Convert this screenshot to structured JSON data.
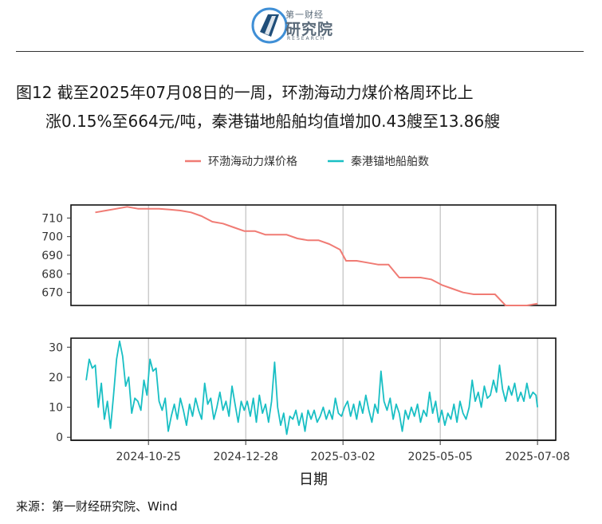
{
  "logo": {
    "cn_small": "第一财经",
    "cn_main": "研究院",
    "en": "RESEARCH",
    "colors": {
      "blue": "#3f8fd6",
      "dark": "#1f4e79",
      "text": "#5b6b7a"
    }
  },
  "title": {
    "line1": "图12  截至2025年07月08日的一周，环渤海动力煤价格周环比上",
    "line2": "涨0.15%至664元/吨，秦港锚地船舶均值增加0.43艘至13.86艘"
  },
  "source": "来源：第一财经研究院、Wind",
  "chart_data": {
    "type": "line",
    "xlabel": "日期",
    "x_ticks": [
      "2024-10-25",
      "2024-12-28",
      "2025-03-02",
      "2025-05-05",
      "2025-07-08"
    ],
    "legend": {
      "position": "top",
      "entries": [
        "环渤海动力煤价格",
        "秦港锚地船舶数"
      ]
    },
    "colors": {
      "price": "#f07b74",
      "ships": "#19bfc4"
    },
    "grid": true,
    "x_range": [
      "2024-09-04",
      "2025-07-20"
    ],
    "panels": [
      {
        "series_name": "环渤海动力煤价格",
        "y_ticks": [
          670,
          680,
          690,
          700,
          710
        ],
        "ylim": [
          663,
          717
        ],
        "points": [
          [
            "2024-09-20",
            713
          ],
          [
            "2024-09-27",
            714
          ],
          [
            "2024-10-04",
            715
          ],
          [
            "2024-10-11",
            716
          ],
          [
            "2024-10-18",
            715
          ],
          [
            "2024-10-25",
            715
          ],
          [
            "2024-11-01",
            715
          ],
          [
            "2024-11-08",
            714.5
          ],
          [
            "2024-11-15",
            714
          ],
          [
            "2024-11-22",
            713
          ],
          [
            "2024-11-29",
            711
          ],
          [
            "2024-12-06",
            708
          ],
          [
            "2024-12-13",
            707
          ],
          [
            "2024-12-20",
            705
          ],
          [
            "2024-12-27",
            703
          ],
          [
            "2025-01-03",
            703
          ],
          [
            "2025-01-10",
            701
          ],
          [
            "2025-01-17",
            701
          ],
          [
            "2025-01-24",
            701
          ],
          [
            "2025-01-31",
            699
          ],
          [
            "2025-02-07",
            698
          ],
          [
            "2025-02-14",
            698
          ],
          [
            "2025-02-21",
            696
          ],
          [
            "2025-02-28",
            693
          ],
          [
            "2025-03-04",
            687
          ],
          [
            "2025-03-11",
            687
          ],
          [
            "2025-03-18",
            686
          ],
          [
            "2025-03-25",
            685
          ],
          [
            "2025-04-01",
            685
          ],
          [
            "2025-04-08",
            678
          ],
          [
            "2025-04-15",
            678
          ],
          [
            "2025-04-22",
            678
          ],
          [
            "2025-04-29",
            677
          ],
          [
            "2025-05-06",
            674
          ],
          [
            "2025-05-13",
            672
          ],
          [
            "2025-05-20",
            670
          ],
          [
            "2025-05-27",
            669
          ],
          [
            "2025-06-03",
            669
          ],
          [
            "2025-06-10",
            669
          ],
          [
            "2025-06-17",
            663
          ],
          [
            "2025-06-24",
            663
          ],
          [
            "2025-07-01",
            663
          ],
          [
            "2025-07-08",
            664
          ]
        ]
      },
      {
        "series_name": "秦港锚地船舶数",
        "y_ticks": [
          0,
          10,
          20,
          30
        ],
        "ylim": [
          -1,
          33
        ],
        "points": [
          [
            "2024-09-14",
            19
          ],
          [
            "2024-09-16",
            26
          ],
          [
            "2024-09-18",
            23
          ],
          [
            "2024-09-20",
            24
          ],
          [
            "2024-09-22",
            10
          ],
          [
            "2024-09-24",
            18
          ],
          [
            "2024-09-26",
            6
          ],
          [
            "2024-09-28",
            12
          ],
          [
            "2024-09-30",
            3
          ],
          [
            "2024-10-02",
            14
          ],
          [
            "2024-10-04",
            26
          ],
          [
            "2024-10-06",
            32
          ],
          [
            "2024-10-08",
            27
          ],
          [
            "2024-10-10",
            17
          ],
          [
            "2024-10-12",
            20
          ],
          [
            "2024-10-14",
            8
          ],
          [
            "2024-10-16",
            13
          ],
          [
            "2024-10-18",
            12
          ],
          [
            "2024-10-20",
            9
          ],
          [
            "2024-10-22",
            19
          ],
          [
            "2024-10-24",
            14
          ],
          [
            "2024-10-26",
            26
          ],
          [
            "2024-10-28",
            22
          ],
          [
            "2024-10-30",
            23
          ],
          [
            "2024-11-01",
            12
          ],
          [
            "2024-11-03",
            9
          ],
          [
            "2024-11-05",
            13
          ],
          [
            "2024-11-07",
            2
          ],
          [
            "2024-11-09",
            7
          ],
          [
            "2024-11-11",
            11
          ],
          [
            "2024-11-13",
            6
          ],
          [
            "2024-11-15",
            13
          ],
          [
            "2024-11-17",
            9
          ],
          [
            "2024-11-19",
            4
          ],
          [
            "2024-11-21",
            11
          ],
          [
            "2024-11-23",
            7
          ],
          [
            "2024-11-25",
            13
          ],
          [
            "2024-11-27",
            9
          ],
          [
            "2024-11-29",
            6
          ],
          [
            "2024-12-01",
            18
          ],
          [
            "2024-12-03",
            11
          ],
          [
            "2024-12-05",
            13
          ],
          [
            "2024-12-07",
            6
          ],
          [
            "2024-12-09",
            10
          ],
          [
            "2024-12-11",
            15
          ],
          [
            "2024-12-13",
            9
          ],
          [
            "2024-12-15",
            12
          ],
          [
            "2024-12-17",
            7
          ],
          [
            "2024-12-19",
            17
          ],
          [
            "2024-12-21",
            11
          ],
          [
            "2024-12-23",
            5
          ],
          [
            "2024-12-25",
            12
          ],
          [
            "2024-12-27",
            9
          ],
          [
            "2024-12-29",
            12
          ],
          [
            "2024-12-31",
            7
          ],
          [
            "2025-01-02",
            13
          ],
          [
            "2025-01-04",
            5
          ],
          [
            "2025-01-06",
            14
          ],
          [
            "2025-01-08",
            8
          ],
          [
            "2025-01-10",
            11
          ],
          [
            "2025-01-12",
            5
          ],
          [
            "2025-01-14",
            12
          ],
          [
            "2025-01-16",
            25
          ],
          [
            "2025-01-18",
            10
          ],
          [
            "2025-01-20",
            4
          ],
          [
            "2025-01-22",
            8
          ],
          [
            "2025-01-24",
            1
          ],
          [
            "2025-01-26",
            7
          ],
          [
            "2025-01-28",
            6
          ],
          [
            "2025-01-30",
            9
          ],
          [
            "2025-02-01",
            4
          ],
          [
            "2025-02-03",
            8
          ],
          [
            "2025-02-05",
            2
          ],
          [
            "2025-02-07",
            9
          ],
          [
            "2025-02-09",
            6
          ],
          [
            "2025-02-11",
            9
          ],
          [
            "2025-02-13",
            5
          ],
          [
            "2025-02-15",
            7
          ],
          [
            "2025-02-17",
            10
          ],
          [
            "2025-02-19",
            6
          ],
          [
            "2025-02-21",
            9
          ],
          [
            "2025-02-23",
            6
          ],
          [
            "2025-02-25",
            13
          ],
          [
            "2025-02-27",
            8
          ],
          [
            "2025-03-01",
            7
          ],
          [
            "2025-03-03",
            10
          ],
          [
            "2025-03-05",
            12
          ],
          [
            "2025-03-07",
            7
          ],
          [
            "2025-03-09",
            11
          ],
          [
            "2025-03-11",
            6
          ],
          [
            "2025-03-13",
            12
          ],
          [
            "2025-03-15",
            8
          ],
          [
            "2025-03-17",
            14
          ],
          [
            "2025-03-19",
            9
          ],
          [
            "2025-03-21",
            5
          ],
          [
            "2025-03-23",
            11
          ],
          [
            "2025-03-25",
            8
          ],
          [
            "2025-03-27",
            22
          ],
          [
            "2025-03-29",
            12
          ],
          [
            "2025-03-31",
            9
          ],
          [
            "2025-04-02",
            13
          ],
          [
            "2025-04-04",
            6
          ],
          [
            "2025-04-06",
            11
          ],
          [
            "2025-04-08",
            8
          ],
          [
            "2025-04-10",
            2
          ],
          [
            "2025-04-12",
            9
          ],
          [
            "2025-04-14",
            6
          ],
          [
            "2025-04-16",
            10
          ],
          [
            "2025-04-18",
            7
          ],
          [
            "2025-04-20",
            11
          ],
          [
            "2025-04-22",
            5
          ],
          [
            "2025-04-24",
            9
          ],
          [
            "2025-04-26",
            7
          ],
          [
            "2025-04-28",
            15
          ],
          [
            "2025-04-30",
            8
          ],
          [
            "2025-05-02",
            12
          ],
          [
            "2025-05-04",
            5
          ],
          [
            "2025-05-06",
            9
          ],
          [
            "2025-05-08",
            4
          ],
          [
            "2025-05-10",
            8
          ],
          [
            "2025-05-12",
            6
          ],
          [
            "2025-05-14",
            11
          ],
          [
            "2025-05-16",
            5
          ],
          [
            "2025-05-18",
            12
          ],
          [
            "2025-05-20",
            8
          ],
          [
            "2025-05-22",
            6
          ],
          [
            "2025-05-24",
            10
          ],
          [
            "2025-05-26",
            19
          ],
          [
            "2025-05-28",
            12
          ],
          [
            "2025-05-30",
            15
          ],
          [
            "2025-06-01",
            10
          ],
          [
            "2025-06-03",
            17
          ],
          [
            "2025-06-05",
            13
          ],
          [
            "2025-06-07",
            14
          ],
          [
            "2025-06-09",
            19
          ],
          [
            "2025-06-11",
            15
          ],
          [
            "2025-06-13",
            24
          ],
          [
            "2025-06-15",
            16
          ],
          [
            "2025-06-17",
            12
          ],
          [
            "2025-06-19",
            17
          ],
          [
            "2025-06-21",
            14
          ],
          [
            "2025-06-23",
            18
          ],
          [
            "2025-06-25",
            12
          ],
          [
            "2025-06-27",
            15
          ],
          [
            "2025-06-29",
            12
          ],
          [
            "2025-07-01",
            18
          ],
          [
            "2025-07-03",
            13
          ],
          [
            "2025-07-05",
            15
          ],
          [
            "2025-07-07",
            14
          ],
          [
            "2025-07-08",
            10
          ]
        ]
      }
    ]
  }
}
